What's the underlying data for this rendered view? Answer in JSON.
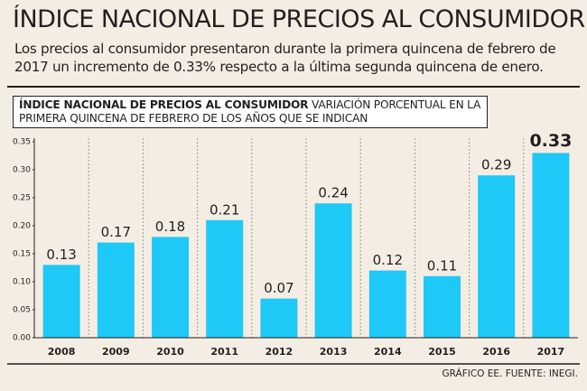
{
  "chart_data": {
    "type": "bar",
    "title": "ÍNDICE NACIONAL DE PRECIOS AL CONSUMIDOR",
    "subtitle": "Los precios al consumidor presentaron durante la primera quincena de febrero de 2017 un incremento de 0.33% respecto a la última segunda quincena de enero.",
    "chart_title": "ÍNDICE NACIONAL DE PRECIOS AL CONSUMIDOR",
    "chart_subtitle": "VARIACIÓN PORCENTUAL EN LA PRIMERA QUINCENA DE FEBRERO DE LOS AÑOS QUE SE INDICAN",
    "categories": [
      "2008",
      "2009",
      "2010",
      "2011",
      "2012",
      "2013",
      "2014",
      "2015",
      "2016",
      "2017"
    ],
    "values": [
      0.13,
      0.17,
      0.18,
      0.21,
      0.07,
      0.24,
      0.12,
      0.11,
      0.29,
      0.33
    ],
    "color": "#1ec8f7",
    "ylim": [
      0,
      0.35
    ],
    "yticks": [
      {
        "value": 0,
        "label": "0.00"
      },
      0.05,
      {
        "value": 0.1,
        "label": "0.10"
      },
      0.15,
      {
        "value": 0.2,
        "label": "0.20"
      },
      0.25,
      {
        "value": 0.3,
        "label": "0.30"
      },
      0.35
    ],
    "source": "GRÁFICO EE. FUENTE: INEGI."
  }
}
